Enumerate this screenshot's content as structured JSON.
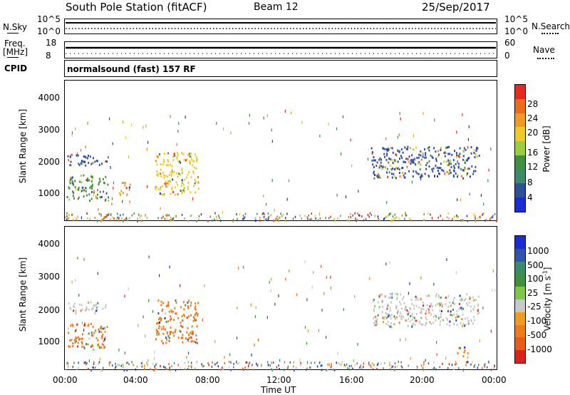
{
  "header": {
    "station": "South Pole Station (fitACF)",
    "beam": "Beam 12",
    "date": "25/Sep/2017"
  },
  "panels": {
    "nsky_label": "N.Sky",
    "nsky_ticks": [
      "10^5",
      "10^0"
    ],
    "nsearch_label": "N.Search",
    "nsearch_ticks": [
      "10^5",
      "10^0"
    ],
    "freq_label_1": "Freq.",
    "freq_label_2": "[MHz]",
    "freq_ticks": [
      "18",
      "8"
    ],
    "nave_label": "Nave",
    "nave_ticks": [
      "60",
      "0"
    ],
    "cpid_label": "CPID",
    "cpid_value": "normalsound (fast) 157 RF"
  },
  "power_colorbar": {
    "label": "Power [dB]",
    "ticks": [
      "28",
      "24",
      "20",
      "16",
      "12",
      "8",
      "4"
    ],
    "colors": [
      "#e8271f",
      "#ee6b1c",
      "#f39a21",
      "#f0c922",
      "#9bcf3a",
      "#3e8f3e",
      "#3a8b6a",
      "#2e4f9e",
      "#1b2cd6"
    ]
  },
  "velocity_colorbar": {
    "label": "Velocity [m s",
    "label_sup": "-1",
    "label_end": "]",
    "ticks": [
      "1000",
      "500",
      "100",
      "25",
      "-25",
      "-100",
      "-500",
      "-1000"
    ],
    "colors": [
      "#1b2cd6",
      "#2e55a8",
      "#3a8b6a",
      "#3e8f3e",
      "#7fc845",
      "#c8c8c8",
      "#f39a21",
      "#ee7a1c",
      "#ea5a1a",
      "#e02018"
    ]
  },
  "time_axis": {
    "label": "Time UT",
    "ticks": [
      "00:00",
      "04:00",
      "08:00",
      "12:00",
      "16:00",
      "20:00",
      "00:00"
    ]
  },
  "range_axis": {
    "label": "Slant Range [km]",
    "ticks": [
      "4000",
      "3000",
      "2000",
      "1000"
    ]
  },
  "chart_data": [
    {
      "type": "heatmap",
      "title": "Power",
      "xlabel": "",
      "ylabel": "Slant Range [km]",
      "xlim": [
        "00:00",
        "00:00"
      ],
      "ylim": [
        180,
        4500
      ],
      "colorbar_label": "Power [dB]",
      "colorbar_ticks": [
        28,
        24,
        20,
        16,
        12,
        8,
        4
      ],
      "regions": [
        {
          "t_start": 0.1,
          "t_end": 2.4,
          "range_min": 1900,
          "range_max": 2250,
          "level": "8"
        },
        {
          "t_start": 0.1,
          "t_end": 2.4,
          "range_min": 800,
          "range_max": 1600,
          "level": "12"
        },
        {
          "t_start": 3.0,
          "t_end": 3.6,
          "range_min": 900,
          "range_max": 1400,
          "level": "20"
        },
        {
          "t_start": 5.0,
          "t_end": 7.4,
          "range_min": 1000,
          "range_max": 2300,
          "level": "16"
        },
        {
          "t_start": 17.0,
          "t_end": 23.0,
          "range_min": 1500,
          "range_max": 2500,
          "level": "8"
        }
      ]
    },
    {
      "type": "heatmap",
      "title": "Velocity",
      "xlabel": "Time UT",
      "ylabel": "Slant Range [km]",
      "xlim": [
        "00:00",
        "00:00"
      ],
      "ylim": [
        180,
        4500
      ],
      "colorbar_label": "Velocity [m s-1]",
      "colorbar_ticks": [
        1000,
        500,
        100,
        25,
        -25,
        -100,
        -500,
        -1000
      ],
      "regions": [
        {
          "t_start": 0.1,
          "t_end": 2.4,
          "range_min": 1900,
          "range_max": 2250,
          "level": "25"
        },
        {
          "t_start": 0.1,
          "t_end": 2.4,
          "range_min": 800,
          "range_max": 1600,
          "level": "-100"
        },
        {
          "t_start": 5.0,
          "t_end": 7.4,
          "range_min": 1000,
          "range_max": 2300,
          "level": "-100"
        },
        {
          "t_start": 17.0,
          "t_end": 23.0,
          "range_min": 1500,
          "range_max": 2500,
          "level": "25"
        },
        {
          "t_start": 21.8,
          "t_end": 22.4,
          "range_min": 600,
          "range_max": 900,
          "level": "-100"
        }
      ]
    }
  ]
}
